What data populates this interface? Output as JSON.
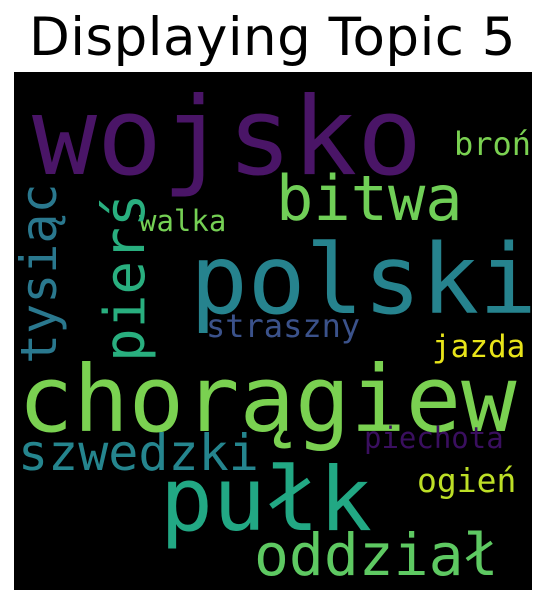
{
  "title": "Displaying Topic 5",
  "words": {
    "wojsko": {
      "text": "wojsko",
      "color": "#4a1567"
    },
    "bitwa": {
      "text": "bitwa",
      "color": "#70cf57"
    },
    "bron": {
      "text": "broń",
      "color": "#7ad151"
    },
    "piers": {
      "text": "pierś",
      "color": "#29af7f"
    },
    "tysiac": {
      "text": "tysiąc",
      "color": "#2a788e"
    },
    "walka": {
      "text": "walka",
      "color": "#75d054"
    },
    "polski": {
      "text": "polski",
      "color": "#26838e"
    },
    "straszny": {
      "text": "straszny",
      "color": "#3b528b"
    },
    "jazda": {
      "text": "jazda",
      "color": "#e8e419"
    },
    "choragiew": {
      "text": "chorągiew",
      "color": "#7ad151"
    },
    "szwedzki": {
      "text": "szwedzki",
      "color": "#25858e"
    },
    "piechota": {
      "text": "piechota",
      "color": "#3a0f5f"
    },
    "pulk": {
      "text": "pułk",
      "color": "#22a884"
    },
    "ogien": {
      "text": "ogień",
      "color": "#bddf26"
    },
    "oddzial": {
      "text": "oddział",
      "color": "#5ec962"
    }
  }
}
